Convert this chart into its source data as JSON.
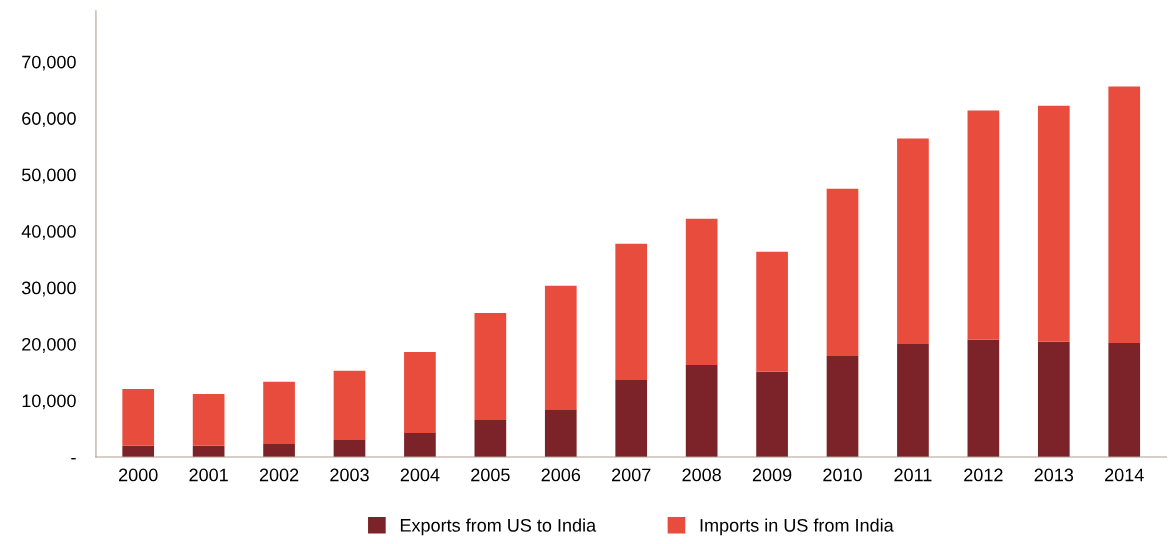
{
  "chart_data": {
    "type": "bar",
    "stacked": true,
    "categories": [
      "2000",
      "2001",
      "2002",
      "2003",
      "2004",
      "2005",
      "2006",
      "2007",
      "2008",
      "2009",
      "2010",
      "2011",
      "2012",
      "2013",
      "2014"
    ],
    "series": [
      {
        "name": "Exports from US to India",
        "color": "#7b2328",
        "values": [
          2000,
          2000,
          2300,
          3000,
          4250,
          6550,
          8300,
          13650,
          16300,
          15100,
          17900,
          20000,
          20750,
          20400,
          20200
        ]
      },
      {
        "name": "Imports in US from India",
        "color": "#e84c3d",
        "values": [
          10050,
          9150,
          11000,
          12250,
          14350,
          18950,
          22000,
          24100,
          25900,
          21250,
          29600,
          36400,
          40600,
          41800,
          45400
        ]
      }
    ],
    "ylim": [
      0,
      79000
    ],
    "yticks": [
      {
        "value": 0,
        "label": "-"
      },
      {
        "value": 10000,
        "label": "10,000"
      },
      {
        "value": 20000,
        "label": "20,000"
      },
      {
        "value": 30000,
        "label": "30,000"
      },
      {
        "value": 40000,
        "label": "40,000"
      },
      {
        "value": 50000,
        "label": "50,000"
      },
      {
        "value": 60000,
        "label": "60,000"
      },
      {
        "value": 70000,
        "label": "70,000"
      }
    ],
    "grid": false,
    "legend": "bottom"
  }
}
